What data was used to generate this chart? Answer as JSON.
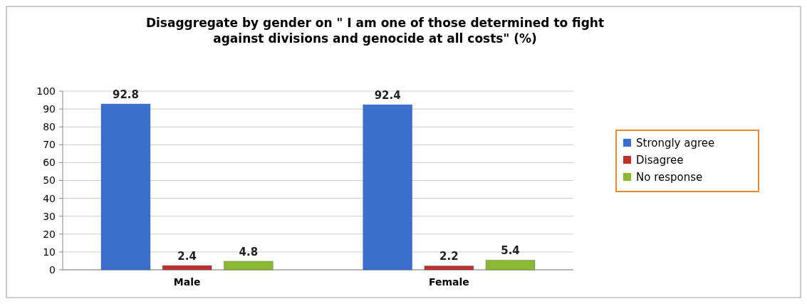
{
  "chart_data": {
    "type": "bar",
    "title": "Disaggregate by gender on \" I am one of those determined to fight against divisions and genocide at all costs\" (%)",
    "categories": [
      "Male",
      "Female"
    ],
    "series": [
      {
        "name": "Strongly agree",
        "color": "#3a6fd0",
        "values": [
          92.8,
          92.4
        ]
      },
      {
        "name": "Disagree",
        "color": "#c0302a",
        "values": [
          2.4,
          2.2
        ]
      },
      {
        "name": "No response",
        "color": "#8ab831",
        "values": [
          4.8,
          5.4
        ]
      }
    ],
    "ylim": [
      0,
      100
    ],
    "yticks": [
      0,
      10,
      20,
      30,
      40,
      50,
      60,
      70,
      80,
      90,
      100
    ],
    "grid": "y",
    "legend": "right",
    "data_labels": true
  }
}
